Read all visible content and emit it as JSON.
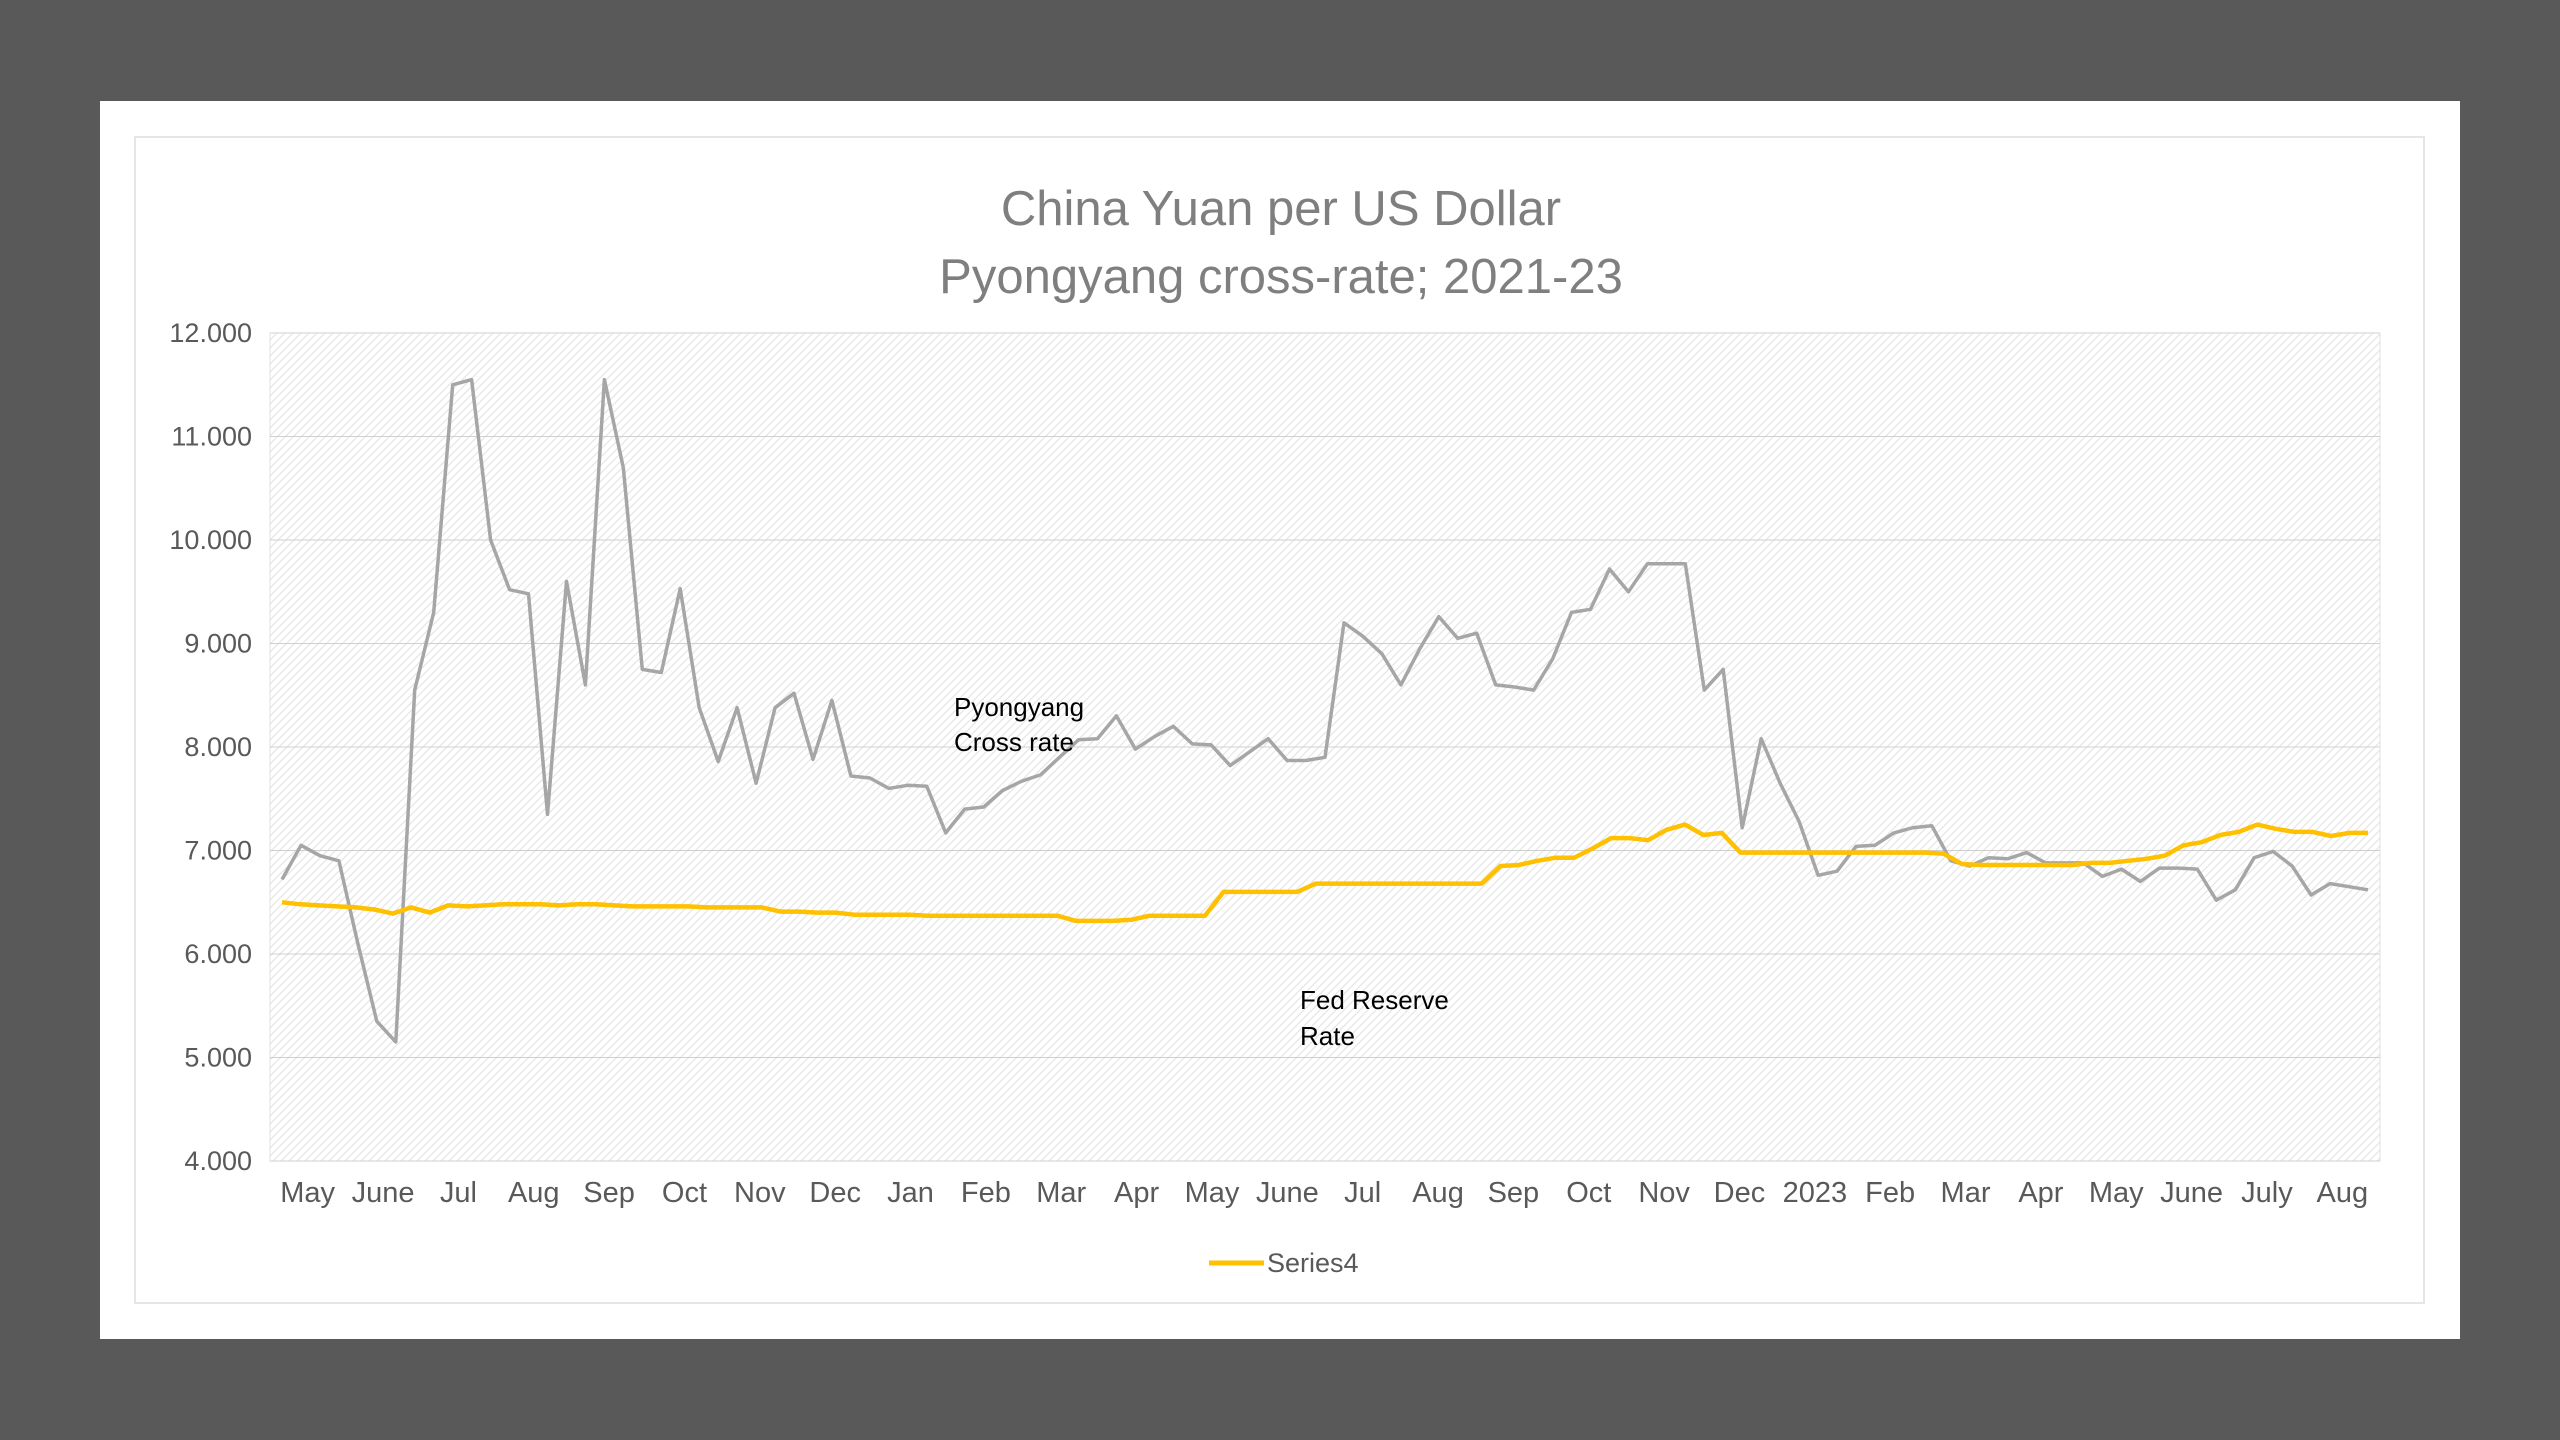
{
  "chart_data": {
    "type": "line",
    "title_lines": [
      "China Yuan per US Dollar",
      "Pyongyang cross-rate; 2021-23"
    ],
    "ylim": [
      4,
      12
    ],
    "y_ticks": [
      "4.000",
      "5.000",
      "6.000",
      "7.000",
      "8.000",
      "9.000",
      "10.000",
      "11.000",
      "12.000"
    ],
    "x_tick_labels": [
      "May",
      "June",
      "Jul",
      "Aug",
      "Sep",
      "Oct",
      "Nov",
      "Dec",
      "Jan",
      "Feb",
      "Mar",
      "Apr",
      "May",
      "June",
      "Jul",
      "Aug",
      "Sep",
      "Oct",
      "Nov",
      "Dec",
      "2023",
      "Feb",
      "Mar",
      "Apr",
      "May",
      "June",
      "July",
      "Aug"
    ],
    "grid": true,
    "colors": {
      "pyongyang": "#a6a6a6",
      "fed": "#ffc000"
    },
    "series": [
      {
        "key": "pyongyang",
        "values": [
          6.72,
          7.05,
          6.95,
          6.9,
          6.1,
          5.35,
          5.15,
          8.55,
          9.3,
          11.5,
          11.55,
          10.0,
          9.52,
          9.48,
          7.35,
          9.6,
          8.6,
          11.55,
          10.7,
          8.75,
          8.72,
          9.53,
          8.38,
          7.86,
          8.38,
          7.65,
          8.38,
          8.52,
          7.88,
          8.45,
          7.72,
          7.7,
          7.6,
          7.63,
          7.62,
          7.17,
          7.4,
          7.42,
          7.58,
          7.67,
          7.73,
          7.9,
          8.07,
          8.08,
          8.3,
          7.98,
          8.1,
          8.2,
          8.03,
          8.02,
          7.82,
          7.95,
          8.08,
          7.87,
          7.87,
          7.9,
          9.2,
          9.07,
          8.9,
          8.6,
          8.95,
          9.26,
          9.05,
          9.1,
          8.6,
          8.58,
          8.55,
          8.85,
          9.3,
          9.33,
          9.72,
          9.5,
          9.77,
          9.77,
          9.77,
          8.55,
          8.75,
          7.22,
          8.08,
          7.65,
          7.28,
          6.76,
          6.8,
          7.04,
          7.05,
          7.17,
          7.22,
          7.24,
          6.9,
          6.85,
          6.93,
          6.92,
          6.98,
          6.88,
          6.88,
          6.88,
          6.75,
          6.82,
          6.7,
          6.83,
          6.83,
          6.82,
          6.52,
          6.62,
          6.93,
          6.99,
          6.85,
          6.57,
          6.68,
          6.65,
          6.62
        ]
      },
      {
        "key": "fed",
        "name": "Series4",
        "values": [
          6.5,
          6.48,
          6.47,
          6.46,
          6.45,
          6.43,
          6.39,
          6.45,
          6.4,
          6.47,
          6.46,
          6.47,
          6.48,
          6.48,
          6.48,
          6.47,
          6.48,
          6.48,
          6.47,
          6.46,
          6.46,
          6.46,
          6.46,
          6.45,
          6.45,
          6.45,
          6.45,
          6.41,
          6.41,
          6.4,
          6.4,
          6.38,
          6.38,
          6.38,
          6.38,
          6.37,
          6.37,
          6.37,
          6.37,
          6.37,
          6.37,
          6.37,
          6.37,
          6.32,
          6.32,
          6.32,
          6.33,
          6.37,
          6.37,
          6.37,
          6.37,
          6.6,
          6.6,
          6.6,
          6.6,
          6.6,
          6.68,
          6.68,
          6.68,
          6.68,
          6.68,
          6.68,
          6.68,
          6.68,
          6.68,
          6.68,
          6.85,
          6.86,
          6.9,
          6.93,
          6.93,
          7.02,
          7.12,
          7.12,
          7.1,
          7.2,
          7.25,
          7.15,
          7.17,
          6.98,
          6.98,
          6.98,
          6.98,
          6.98,
          6.98,
          6.98,
          6.98,
          6.98,
          6.98,
          6.98,
          6.97,
          6.87,
          6.86,
          6.86,
          6.86,
          6.86,
          6.86,
          6.86,
          6.88,
          6.88,
          6.9,
          6.92,
          6.95,
          7.05,
          7.08,
          7.15,
          7.18,
          7.25,
          7.21,
          7.18,
          7.18,
          7.14,
          7.17,
          7.17
        ]
      }
    ],
    "annotations": [
      {
        "id": "pyongyang",
        "lines": [
          "Pyongyang",
          "Cross rate"
        ]
      },
      {
        "id": "fed",
        "lines": [
          "Fed Reserve",
          "Rate"
        ]
      }
    ],
    "legend": {
      "position": "bottom",
      "label": "Series4"
    }
  }
}
